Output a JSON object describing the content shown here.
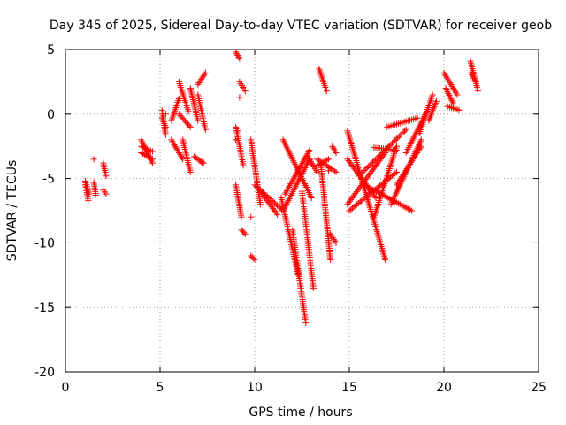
{
  "chart_data": {
    "type": "scatter",
    "title": "Day 345 of 2025, Sidereal Day-to-day VTEC variation (SDTVAR) for receiver geob",
    "xlabel": "GPS time / hours",
    "ylabel": "SDTVAR / TECUs",
    "xlim": [
      0,
      25
    ],
    "ylim": [
      -20,
      5
    ],
    "xticks": [
      0,
      5,
      10,
      15,
      20,
      25
    ],
    "yticks": [
      -20,
      -15,
      -10,
      -5,
      0,
      5
    ],
    "xtick_labels": [
      "0",
      "5",
      "10",
      "15",
      "20",
      "25"
    ],
    "ytick_labels": [
      "-20",
      "-15",
      "-10",
      "-5",
      "0",
      "5"
    ],
    "grid": true,
    "marker": "plus",
    "color": "#ff0000",
    "segments": [
      {
        "x": [
          1.05,
          1.2
        ],
        "y": [
          -5.5,
          -6.7
        ]
      },
      {
        "x": [
          1.05,
          1.25
        ],
        "y": [
          -5.2,
          -6.2
        ]
      },
      {
        "x": [
          1.5,
          1.6
        ],
        "y": [
          -5.3,
          -6.3
        ]
      },
      {
        "x": [
          2.0,
          2.15
        ],
        "y": [
          -3.8,
          -4.8
        ]
      },
      {
        "x": [
          2.0,
          2.15
        ],
        "y": [
          -5.9,
          -6.2
        ]
      },
      {
        "x": [
          4.0,
          4.6
        ],
        "y": [
          -2.0,
          -3.8
        ]
      },
      {
        "x": [
          4.0,
          4.6
        ],
        "y": [
          -3.0,
          -3.5
        ]
      },
      {
        "x": [
          4.0,
          4.6
        ],
        "y": [
          -2.5,
          -2.9
        ]
      },
      {
        "x": [
          5.1,
          5.3
        ],
        "y": [
          0.3,
          -1.6
        ]
      },
      {
        "x": [
          5.1,
          5.3
        ],
        "y": [
          -0.3,
          -1.0
        ]
      },
      {
        "x": [
          5.6,
          6.0
        ],
        "y": [
          -0.5,
          1.2
        ]
      },
      {
        "x": [
          5.6,
          6.2
        ],
        "y": [
          -2.0,
          -3.5
        ]
      },
      {
        "x": [
          6.0,
          6.5
        ],
        "y": [
          2.5,
          0.2
        ]
      },
      {
        "x": [
          6.2,
          6.6
        ],
        "y": [
          -2.0,
          -4.5
        ]
      },
      {
        "x": [
          6.0,
          6.6
        ],
        "y": [
          0.0,
          -1.0
        ]
      },
      {
        "x": [
          6.6,
          7.0
        ],
        "y": [
          2.0,
          -0.5
        ]
      },
      {
        "x": [
          6.8,
          7.3
        ],
        "y": [
          -3.3,
          -3.8
        ]
      },
      {
        "x": [
          7.0,
          7.4
        ],
        "y": [
          1.5,
          -1.2
        ]
      },
      {
        "x": [
          7.0,
          7.4
        ],
        "y": [
          2.3,
          3.2
        ]
      },
      {
        "x": [
          9.0,
          9.2
        ],
        "y": [
          4.8,
          4.3
        ]
      },
      {
        "x": [
          9.0,
          9.4
        ],
        "y": [
          -1.0,
          -4.0
        ]
      },
      {
        "x": [
          9.0,
          9.3
        ],
        "y": [
          -5.5,
          -8.0
        ]
      },
      {
        "x": [
          9.2,
          9.5
        ],
        "y": [
          2.5,
          1.8
        ]
      },
      {
        "x": [
          9.3,
          9.5
        ],
        "y": [
          -9.0,
          -9.3
        ]
      },
      {
        "x": [
          9.8,
          10.3
        ],
        "y": [
          -2.0,
          -7.0
        ]
      },
      {
        "x": [
          9.8,
          10.0
        ],
        "y": [
          -11.0,
          -11.3
        ]
      },
      {
        "x": [
          10.0,
          11.5
        ],
        "y": [
          -5.5,
          -7.5
        ]
      },
      {
        "x": [
          10.3,
          11.2
        ],
        "y": [
          -6.0,
          -7.8
        ]
      },
      {
        "x": [
          11.4,
          12.3
        ],
        "y": [
          -6.5,
          -12.5
        ]
      },
      {
        "x": [
          11.5,
          13.0
        ],
        "y": [
          -2.0,
          -6.5
        ]
      },
      {
        "x": [
          11.6,
          12.9
        ],
        "y": [
          -6.2,
          -2.8
        ]
      },
      {
        "x": [
          11.5,
          12.9
        ],
        "y": [
          -7.5,
          -3.5
        ]
      },
      {
        "x": [
          12.0,
          12.7
        ],
        "y": [
          -9.0,
          -16.2
        ]
      },
      {
        "x": [
          12.5,
          13.1
        ],
        "y": [
          -6.0,
          -13.5
        ]
      },
      {
        "x": [
          12.8,
          13.3
        ],
        "y": [
          -3.3,
          -4.5
        ]
      },
      {
        "x": [
          13.3,
          13.9
        ],
        "y": [
          -4.0,
          -3.5
        ]
      },
      {
        "x": [
          13.4,
          13.8
        ],
        "y": [
          3.5,
          1.8
        ]
      },
      {
        "x": [
          13.3,
          14.3
        ],
        "y": [
          -3.5,
          -4.5
        ]
      },
      {
        "x": [
          14.0,
          14.3
        ],
        "y": [
          -9.3,
          -10.0
        ]
      },
      {
        "x": [
          13.5,
          14.0
        ],
        "y": [
          -4.0,
          -11.3
        ]
      },
      {
        "x": [
          14.1,
          14.3
        ],
        "y": [
          -2.5,
          -3.0
        ]
      },
      {
        "x": [
          14.9,
          16.9
        ],
        "y": [
          -1.3,
          -11.3
        ]
      },
      {
        "x": [
          14.9,
          16.4
        ],
        "y": [
          -3.5,
          -6.5
        ]
      },
      {
        "x": [
          14.9,
          16.9
        ],
        "y": [
          -7.0,
          -3.0
        ]
      },
      {
        "x": [
          15.0,
          17.5
        ],
        "y": [
          -7.5,
          -4.5
        ]
      },
      {
        "x": [
          15.8,
          18.3
        ],
        "y": [
          -5.5,
          -7.5
        ]
      },
      {
        "x": [
          15.5,
          18.0
        ],
        "y": [
          -4.8,
          -1.2
        ]
      },
      {
        "x": [
          16.3,
          17.5
        ],
        "y": [
          -8.0,
          -2.5
        ]
      },
      {
        "x": [
          16.3,
          17.5
        ],
        "y": [
          -2.6,
          -2.8
        ]
      },
      {
        "x": [
          17.0,
          18.6
        ],
        "y": [
          -1.0,
          -0.3
        ]
      },
      {
        "x": [
          17.2,
          18.8
        ],
        "y": [
          -7.0,
          -2.0
        ]
      },
      {
        "x": [
          17.5,
          18.8
        ],
        "y": [
          -5.5,
          -2.5
        ]
      },
      {
        "x": [
          18.0,
          19.2
        ],
        "y": [
          -3.0,
          0.5
        ]
      },
      {
        "x": [
          18.7,
          19.4
        ],
        "y": [
          -1.5,
          1.5
        ]
      },
      {
        "x": [
          19.2,
          19.6
        ],
        "y": [
          -0.5,
          1.0
        ]
      },
      {
        "x": [
          20.0,
          20.7
        ],
        "y": [
          3.2,
          1.5
        ]
      },
      {
        "x": [
          20.1,
          20.5
        ],
        "y": [
          2.0,
          0.8
        ]
      },
      {
        "x": [
          20.2,
          20.8
        ],
        "y": [
          0.6,
          0.3
        ]
      },
      {
        "x": [
          21.4,
          21.8
        ],
        "y": [
          4.1,
          1.8
        ]
      },
      {
        "x": [
          21.4,
          21.7
        ],
        "y": [
          3.2,
          2.5
        ]
      }
    ],
    "points": [
      {
        "x": 1.5,
        "y": -3.5
      },
      {
        "x": 5.3,
        "y": 0.0
      },
      {
        "x": 7.2,
        "y": -3.8
      },
      {
        "x": 9.0,
        "y": -2.0
      },
      {
        "x": 9.1,
        "y": -1.3
      },
      {
        "x": 9.2,
        "y": 1.3
      },
      {
        "x": 9.8,
        "y": -8.0
      },
      {
        "x": 13.9,
        "y": -4.4
      },
      {
        "x": 16.0,
        "y": -5.8
      }
    ]
  }
}
